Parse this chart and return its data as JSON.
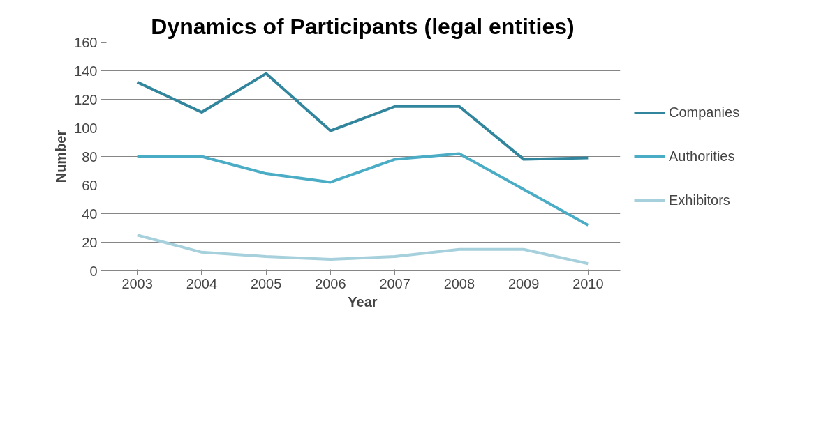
{
  "chart_data": {
    "type": "line",
    "title": "Dynamics of Participants (legal entities)",
    "xlabel": "Year",
    "ylabel": "Number",
    "categories": [
      "2003",
      "2004",
      "2005",
      "2006",
      "2007",
      "2008",
      "2009",
      "2010"
    ],
    "series": [
      {
        "name": "Companies",
        "color": "#31859c",
        "values": [
          132,
          111,
          138,
          98,
          115,
          115,
          78,
          79
        ]
      },
      {
        "name": "Authorities",
        "color": "#4bacc6",
        "values": [
          80,
          80,
          68,
          62,
          78,
          82,
          57,
          32
        ]
      },
      {
        "name": "Exhibitors",
        "color": "#a5d0dc",
        "values": [
          25,
          13,
          10,
          8,
          10,
          15,
          15,
          5
        ]
      }
    ],
    "ylim": [
      0,
      160
    ],
    "yticks": [
      0,
      20,
      40,
      60,
      80,
      100,
      120,
      140,
      160
    ],
    "grid": "y",
    "legend": "right",
    "line_style": "solid",
    "marker": "none"
  }
}
